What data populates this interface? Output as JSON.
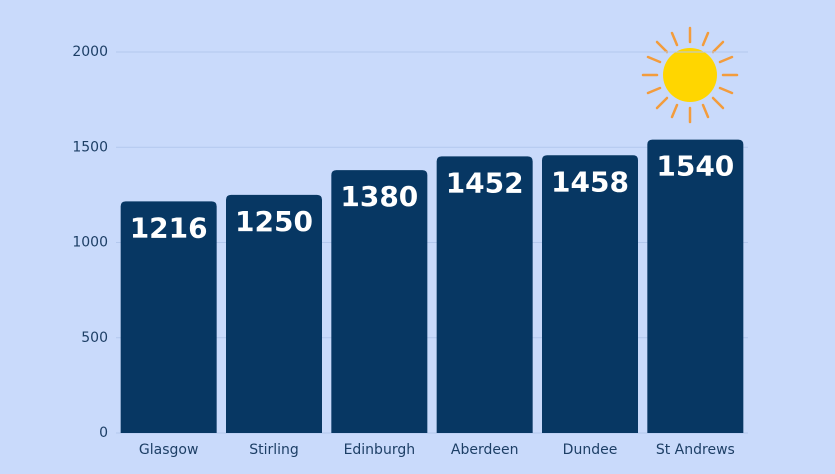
{
  "chart_data": {
    "type": "bar",
    "categories": [
      "Glasgow",
      "Stirling",
      "Edinburgh",
      "Aberdeen",
      "Dundee",
      "St Andrews"
    ],
    "values": [
      1216,
      1250,
      1380,
      1452,
      1458,
      1540
    ],
    "color": "#073763",
    "ylim": [
      0,
      2000
    ],
    "yticks": [
      0,
      500,
      1000,
      1500,
      2000
    ],
    "grid": true
  }
}
